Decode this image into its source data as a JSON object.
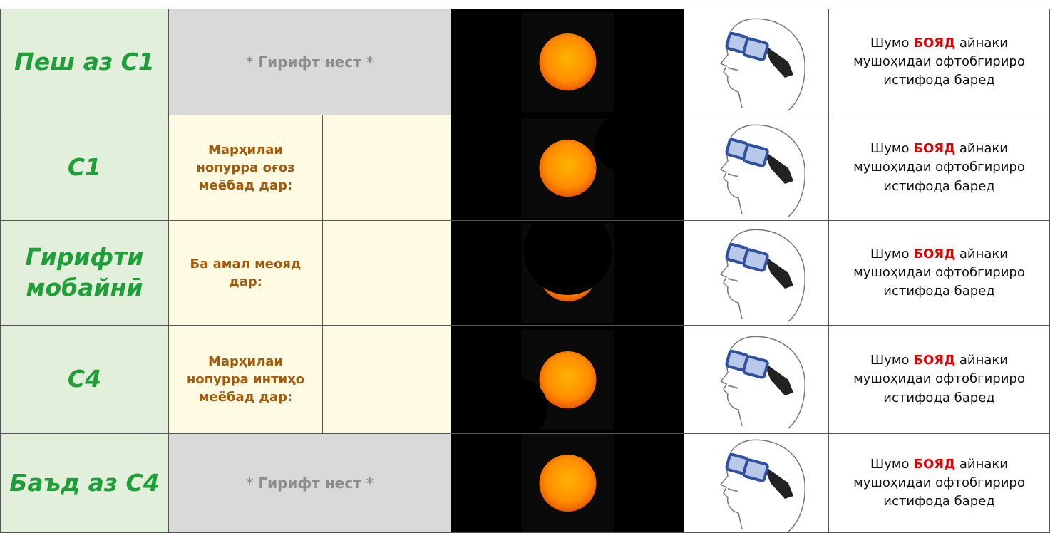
{
  "rows": [
    {
      "label": "Пеш аз  C1",
      "status": "* Гирифт нест *",
      "advice": {
        "before": "Шумо",
        "emphasis": "БОЯД",
        "after": "айнаки мушоҳидаи офтобгириро истифода баред"
      }
    },
    {
      "label": "C1",
      "phase": "Марҳилаи нопурра оғоз меёбад дар:",
      "advice": {
        "before": "Шумо",
        "emphasis": "БОЯД",
        "after": "айнаки мушоҳидаи офтобгириро истифода баред"
      }
    },
    {
      "label": "Гирифти мобайнӣ",
      "phase": "Ба амал меояд дар:",
      "advice": {
        "before": "Шумо",
        "emphasis": "БОЯД",
        "after": "айнаки мушоҳидаи офтобгириро истифода баред"
      }
    },
    {
      "label": "C4",
      "phase": "Марҳилаи нопурра интиҳо меёбад дар:",
      "advice": {
        "before": "Шумо",
        "emphasis": "БОЯД",
        "after": "айнаки мушоҳидаи офтобгириро истифода баред"
      }
    },
    {
      "label": "Баъд аз C4",
      "status": "* Гирифт нест *",
      "advice": {
        "before": "Шумо",
        "emphasis": "БОЯД",
        "after": "айнаки мушоҳидаи офтобгириро истифода баред"
      }
    }
  ]
}
